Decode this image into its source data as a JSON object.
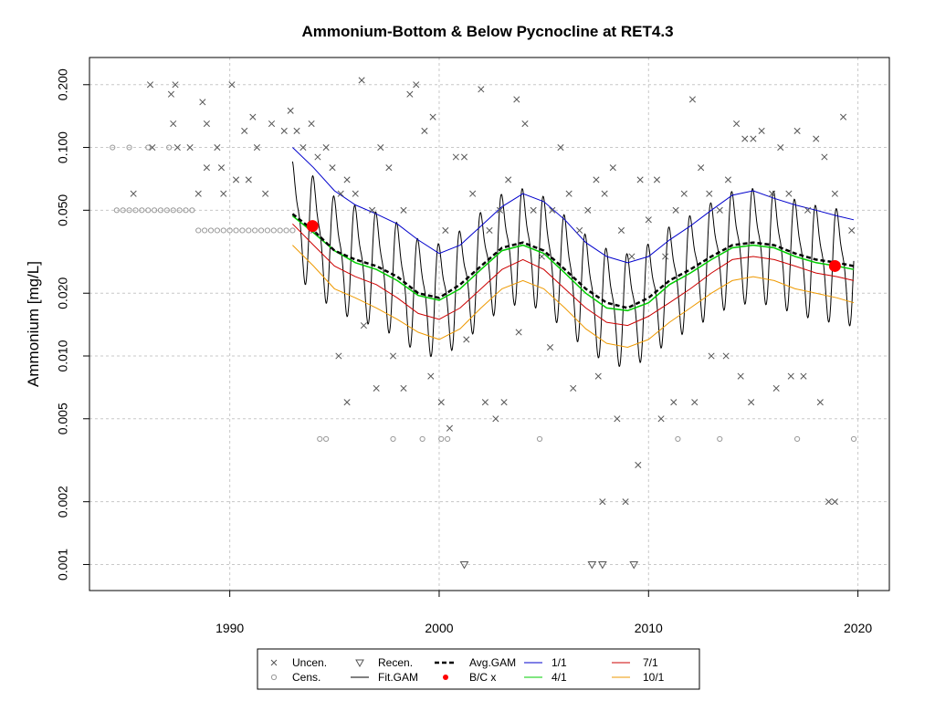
{
  "chart_data": {
    "type": "scatter",
    "title": "Ammonium-Bottom & Below Pycnocline at RET4.3",
    "xlabel": "",
    "ylabel": "Ammonium [mg/L]",
    "x_log": false,
    "y_log": true,
    "xlim": [
      1983.3,
      2021.5
    ],
    "ylim": [
      0.00075,
      0.27
    ],
    "x_ticks": [
      1990,
      2000,
      2010,
      2020
    ],
    "x_tick_labels": [
      "1990",
      "2000",
      "2010",
      "2020"
    ],
    "y_ticks": [
      0.001,
      0.002,
      0.005,
      0.01,
      0.02,
      0.05,
      0.1,
      0.2
    ],
    "y_tick_labels": [
      "0.001",
      "0.002",
      "0.005",
      "0.010",
      "0.020",
      "0.050",
      "0.100",
      "0.200"
    ],
    "grid": true,
    "legend_position": "bottom",
    "legend": [
      {
        "label": "Uncen.",
        "symbol": "x",
        "color": "#555555"
      },
      {
        "label": "Cens.",
        "symbol": "circle",
        "color": "#999999"
      },
      {
        "label": "Recen.",
        "symbol": "triangle-down",
        "color": "#555555"
      },
      {
        "label": "Fit.GAM",
        "symbol": "line",
        "color": "#000000"
      },
      {
        "label": "Avg.GAM",
        "symbol": "dashed-line",
        "color": "#000000"
      },
      {
        "label": "B/C x",
        "symbol": "dot",
        "color": "#ff0000"
      },
      {
        "label": "1/1",
        "symbol": "line",
        "color": "#0000cc"
      },
      {
        "label": "4/1",
        "symbol": "line",
        "color": "#00cc00"
      },
      {
        "label": "7/1",
        "symbol": "line",
        "color": "#cc0000"
      },
      {
        "label": "10/1",
        "symbol": "line",
        "color": "#ee9900"
      }
    ],
    "uncensored": [
      [
        1986.2,
        0.2
      ],
      [
        1987.4,
        0.2
      ],
      [
        1990.1,
        0.2
      ],
      [
        1987.2,
        0.18
      ],
      [
        1988.7,
        0.165
      ],
      [
        1986.3,
        0.1
      ],
      [
        1987.5,
        0.1
      ],
      [
        1988.1,
        0.1
      ],
      [
        1989.4,
        0.1
      ],
      [
        1988.9,
        0.08
      ],
      [
        1989.6,
        0.08
      ],
      [
        1988.5,
        0.06
      ],
      [
        1989.7,
        0.06
      ],
      [
        1985.4,
        0.06
      ],
      [
        1987.3,
        0.13
      ],
      [
        1988.9,
        0.13
      ],
      [
        1990.3,
        0.07
      ],
      [
        1990.9,
        0.07
      ],
      [
        1991.3,
        0.1
      ],
      [
        1991.7,
        0.06
      ],
      [
        1990.7,
        0.12
      ],
      [
        1991.1,
        0.14
      ],
      [
        1992.0,
        0.13
      ],
      [
        1992.6,
        0.12
      ],
      [
        1992.9,
        0.15
      ],
      [
        1993.2,
        0.12
      ],
      [
        1993.5,
        0.1
      ],
      [
        1993.9,
        0.13
      ],
      [
        1994.2,
        0.09
      ],
      [
        1994.6,
        0.1
      ],
      [
        1994.9,
        0.08
      ],
      [
        1995.3,
        0.06
      ],
      [
        1995.6,
        0.07
      ],
      [
        1996.0,
        0.06
      ],
      [
        1996.3,
        0.21
      ],
      [
        1996.8,
        0.05
      ],
      [
        1997.2,
        0.1
      ],
      [
        1997.6,
        0.08
      ],
      [
        1998.3,
        0.05
      ],
      [
        1998.6,
        0.18
      ],
      [
        1998.9,
        0.2
      ],
      [
        1999.3,
        0.12
      ],
      [
        1999.7,
        0.14
      ],
      [
        2000.3,
        0.04
      ],
      [
        2000.8,
        0.09
      ],
      [
        2001.2,
        0.09
      ],
      [
        2001.6,
        0.06
      ],
      [
        2002.0,
        0.19
      ],
      [
        2002.4,
        0.04
      ],
      [
        2002.9,
        0.05
      ],
      [
        2003.3,
        0.07
      ],
      [
        2003.7,
        0.17
      ],
      [
        2004.1,
        0.13
      ],
      [
        2004.5,
        0.05
      ],
      [
        2004.9,
        0.03
      ],
      [
        2005.4,
        0.05
      ],
      [
        2005.8,
        0.1
      ],
      [
        2006.2,
        0.06
      ],
      [
        2006.7,
        0.04
      ],
      [
        2007.1,
        0.05
      ],
      [
        2007.5,
        0.07
      ],
      [
        2007.9,
        0.06
      ],
      [
        2008.3,
        0.08
      ],
      [
        2008.7,
        0.04
      ],
      [
        2009.2,
        0.03
      ],
      [
        2009.6,
        0.07
      ],
      [
        2010.0,
        0.045
      ],
      [
        2010.4,
        0.07
      ],
      [
        2010.8,
        0.03
      ],
      [
        2011.3,
        0.05
      ],
      [
        2011.7,
        0.06
      ],
      [
        2012.1,
        0.17
      ],
      [
        2012.5,
        0.08
      ],
      [
        2012.9,
        0.06
      ],
      [
        2013.4,
        0.05
      ],
      [
        2013.8,
        0.07
      ],
      [
        2014.2,
        0.13
      ],
      [
        2014.6,
        0.11
      ],
      [
        2015.0,
        0.11
      ],
      [
        2015.4,
        0.12
      ],
      [
        2015.9,
        0.06
      ],
      [
        2016.3,
        0.1
      ],
      [
        2016.7,
        0.06
      ],
      [
        2017.1,
        0.12
      ],
      [
        2017.6,
        0.05
      ],
      [
        2018.0,
        0.11
      ],
      [
        2018.4,
        0.09
      ],
      [
        2018.9,
        0.06
      ],
      [
        2019.3,
        0.14
      ],
      [
        2019.7,
        0.04
      ],
      [
        1994.0,
        0.04
      ],
      [
        1995.2,
        0.01
      ],
      [
        1995.6,
        0.006
      ],
      [
        1996.4,
        0.014
      ],
      [
        1997.0,
        0.007
      ],
      [
        1997.8,
        0.01
      ],
      [
        1998.3,
        0.007
      ],
      [
        1999.6,
        0.008
      ],
      [
        2000.1,
        0.006
      ],
      [
        2000.5,
        0.0045
      ],
      [
        2001.3,
        0.012
      ],
      [
        2002.2,
        0.006
      ],
      [
        2002.7,
        0.005
      ],
      [
        2003.1,
        0.006
      ],
      [
        2003.8,
        0.013
      ],
      [
        2005.3,
        0.011
      ],
      [
        2006.4,
        0.007
      ],
      [
        2007.6,
        0.008
      ],
      [
        2007.8,
        0.002
      ],
      [
        2008.5,
        0.005
      ],
      [
        2008.9,
        0.002
      ],
      [
        2009.5,
        0.003
      ],
      [
        2010.6,
        0.005
      ],
      [
        2011.2,
        0.006
      ],
      [
        2012.2,
        0.006
      ],
      [
        2013.0,
        0.01
      ],
      [
        2013.7,
        0.01
      ],
      [
        2014.4,
        0.008
      ],
      [
        2014.9,
        0.006
      ],
      [
        2016.1,
        0.007
      ],
      [
        2016.8,
        0.008
      ],
      [
        2017.4,
        0.008
      ],
      [
        2018.2,
        0.006
      ],
      [
        2018.6,
        0.002
      ],
      [
        2018.9,
        0.002
      ]
    ],
    "censored": [
      [
        1984.4,
        0.1
      ],
      [
        1985.2,
        0.1
      ],
      [
        1986.1,
        0.1
      ],
      [
        1987.1,
        0.1
      ],
      [
        1984.6,
        0.05
      ],
      [
        1984.9,
        0.05
      ],
      [
        1985.2,
        0.05
      ],
      [
        1985.5,
        0.05
      ],
      [
        1985.8,
        0.05
      ],
      [
        1986.1,
        0.05
      ],
      [
        1986.4,
        0.05
      ],
      [
        1986.7,
        0.05
      ],
      [
        1987.0,
        0.05
      ],
      [
        1987.3,
        0.05
      ],
      [
        1987.6,
        0.05
      ],
      [
        1987.9,
        0.05
      ],
      [
        1988.2,
        0.05
      ],
      [
        1988.5,
        0.04
      ],
      [
        1988.8,
        0.04
      ],
      [
        1989.1,
        0.04
      ],
      [
        1989.4,
        0.04
      ],
      [
        1989.7,
        0.04
      ],
      [
        1990.0,
        0.04
      ],
      [
        1990.3,
        0.04
      ],
      [
        1990.6,
        0.04
      ],
      [
        1990.9,
        0.04
      ],
      [
        1991.2,
        0.04
      ],
      [
        1991.5,
        0.04
      ],
      [
        1991.8,
        0.04
      ],
      [
        1992.1,
        0.04
      ],
      [
        1992.4,
        0.04
      ],
      [
        1992.7,
        0.04
      ],
      [
        1993.0,
        0.04
      ],
      [
        1994.3,
        0.004
      ],
      [
        1994.6,
        0.004
      ],
      [
        1997.8,
        0.004
      ],
      [
        1999.2,
        0.004
      ],
      [
        2000.1,
        0.004
      ],
      [
        2000.4,
        0.004
      ],
      [
        2004.8,
        0.004
      ],
      [
        2011.4,
        0.004
      ],
      [
        2013.4,
        0.004
      ],
      [
        2017.1,
        0.004
      ],
      [
        2019.8,
        0.004
      ]
    ],
    "recensored": [
      [
        2001.2,
        0.001
      ],
      [
        2007.3,
        0.001
      ],
      [
        2007.8,
        0.001
      ],
      [
        2009.3,
        0.001
      ]
    ],
    "fit_gam_description": "seasonal oscillating fit",
    "bc_points": [
      [
        1993.95,
        0.042
      ],
      [
        2018.9,
        0.027
      ]
    ],
    "avg_gam": [
      [
        1993.0,
        0.048
      ],
      [
        1994.0,
        0.04
      ],
      [
        1995.0,
        0.032
      ],
      [
        1996.0,
        0.029
      ],
      [
        1997.0,
        0.027
      ],
      [
        1998.0,
        0.024
      ],
      [
        1999.0,
        0.02
      ],
      [
        2000.0,
        0.019
      ],
      [
        2001.0,
        0.022
      ],
      [
        2002.0,
        0.027
      ],
      [
        2003.0,
        0.033
      ],
      [
        2004.0,
        0.035
      ],
      [
        2005.0,
        0.032
      ],
      [
        2006.0,
        0.026
      ],
      [
        2007.0,
        0.021
      ],
      [
        2008.0,
        0.018
      ],
      [
        2009.0,
        0.017
      ],
      [
        2010.0,
        0.019
      ],
      [
        2011.0,
        0.023
      ],
      [
        2012.0,
        0.026
      ],
      [
        2013.0,
        0.03
      ],
      [
        2014.0,
        0.034
      ],
      [
        2015.0,
        0.035
      ],
      [
        2016.0,
        0.034
      ],
      [
        2017.0,
        0.031
      ],
      [
        2018.0,
        0.029
      ],
      [
        2019.0,
        0.028
      ],
      [
        2019.8,
        0.027
      ]
    ],
    "line_1_1": [
      [
        1993.0,
        0.1
      ],
      [
        1994.0,
        0.08
      ],
      [
        1995.0,
        0.062
      ],
      [
        1996.0,
        0.053
      ],
      [
        1997.0,
        0.048
      ],
      [
        1998.0,
        0.043
      ],
      [
        1999.0,
        0.036
      ],
      [
        2000.0,
        0.031
      ],
      [
        2001.0,
        0.034
      ],
      [
        2002.0,
        0.042
      ],
      [
        2003.0,
        0.052
      ],
      [
        2004.0,
        0.06
      ],
      [
        2005.0,
        0.055
      ],
      [
        2006.0,
        0.045
      ],
      [
        2007.0,
        0.035
      ],
      [
        2008.0,
        0.03
      ],
      [
        2009.0,
        0.028
      ],
      [
        2010.0,
        0.03
      ],
      [
        2011.0,
        0.036
      ],
      [
        2012.0,
        0.042
      ],
      [
        2013.0,
        0.05
      ],
      [
        2014.0,
        0.059
      ],
      [
        2015.0,
        0.062
      ],
      [
        2016.0,
        0.057
      ],
      [
        2017.0,
        0.053
      ],
      [
        2018.0,
        0.05
      ],
      [
        2019.0,
        0.047
      ],
      [
        2019.8,
        0.045
      ]
    ],
    "line_4_1": [
      [
        1993.0,
        0.047
      ],
      [
        1994.0,
        0.039
      ],
      [
        1995.0,
        0.032
      ],
      [
        1996.0,
        0.028
      ],
      [
        1997.0,
        0.026
      ],
      [
        1998.0,
        0.023
      ],
      [
        1999.0,
        0.0195
      ],
      [
        2000.0,
        0.0185
      ],
      [
        2001.0,
        0.021
      ],
      [
        2002.0,
        0.026
      ],
      [
        2003.0,
        0.032
      ],
      [
        2004.0,
        0.034
      ],
      [
        2005.0,
        0.031
      ],
      [
        2006.0,
        0.025
      ],
      [
        2007.0,
        0.02
      ],
      [
        2008.0,
        0.017
      ],
      [
        2009.0,
        0.0165
      ],
      [
        2010.0,
        0.018
      ],
      [
        2011.0,
        0.022
      ],
      [
        2012.0,
        0.025
      ],
      [
        2013.0,
        0.029
      ],
      [
        2014.0,
        0.033
      ],
      [
        2015.0,
        0.034
      ],
      [
        2016.0,
        0.033
      ],
      [
        2017.0,
        0.03
      ],
      [
        2018.0,
        0.028
      ],
      [
        2019.0,
        0.027
      ],
      [
        2019.8,
        0.026
      ]
    ],
    "line_7_1": [
      [
        1993.0,
        0.043
      ],
      [
        1994.0,
        0.034
      ],
      [
        1995.0,
        0.027
      ],
      [
        1996.0,
        0.024
      ],
      [
        1997.0,
        0.022
      ],
      [
        1998.0,
        0.019
      ],
      [
        1999.0,
        0.016
      ],
      [
        2000.0,
        0.015
      ],
      [
        2001.0,
        0.017
      ],
      [
        2002.0,
        0.021
      ],
      [
        2003.0,
        0.026
      ],
      [
        2004.0,
        0.029
      ],
      [
        2005.0,
        0.026
      ],
      [
        2006.0,
        0.021
      ],
      [
        2007.0,
        0.017
      ],
      [
        2008.0,
        0.0145
      ],
      [
        2009.0,
        0.014
      ],
      [
        2010.0,
        0.0155
      ],
      [
        2011.0,
        0.018
      ],
      [
        2012.0,
        0.021
      ],
      [
        2013.0,
        0.025
      ],
      [
        2014.0,
        0.029
      ],
      [
        2015.0,
        0.03
      ],
      [
        2016.0,
        0.029
      ],
      [
        2017.0,
        0.027
      ],
      [
        2018.0,
        0.025
      ],
      [
        2019.0,
        0.024
      ],
      [
        2019.8,
        0.023
      ]
    ],
    "line_10_1": [
      [
        1993.0,
        0.034
      ],
      [
        1994.0,
        0.027
      ],
      [
        1995.0,
        0.021
      ],
      [
        1996.0,
        0.019
      ],
      [
        1997.0,
        0.017
      ],
      [
        1998.0,
        0.015
      ],
      [
        1999.0,
        0.013
      ],
      [
        2000.0,
        0.012
      ],
      [
        2001.0,
        0.0135
      ],
      [
        2002.0,
        0.017
      ],
      [
        2003.0,
        0.021
      ],
      [
        2004.0,
        0.023
      ],
      [
        2005.0,
        0.021
      ],
      [
        2006.0,
        0.017
      ],
      [
        2007.0,
        0.0135
      ],
      [
        2008.0,
        0.0115
      ],
      [
        2009.0,
        0.011
      ],
      [
        2010.0,
        0.012
      ],
      [
        2011.0,
        0.0145
      ],
      [
        2012.0,
        0.017
      ],
      [
        2013.0,
        0.02
      ],
      [
        2014.0,
        0.023
      ],
      [
        2015.0,
        0.024
      ],
      [
        2016.0,
        0.023
      ],
      [
        2017.0,
        0.021
      ],
      [
        2018.0,
        0.02
      ],
      [
        2019.0,
        0.019
      ],
      [
        2019.8,
        0.018
      ]
    ]
  }
}
